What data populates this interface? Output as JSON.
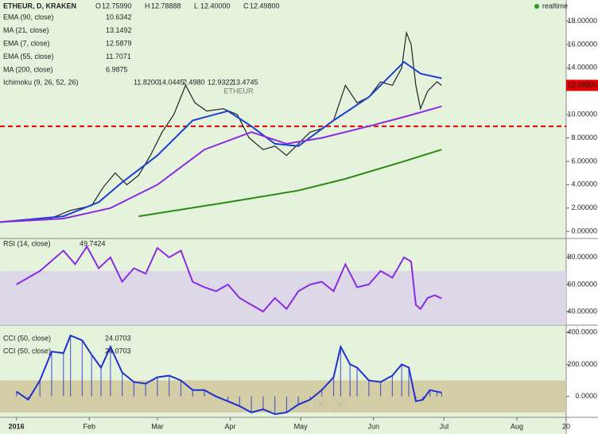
{
  "chart_data": [
    {
      "type": "line",
      "title": "ETHEUR, D, KRAKEN",
      "watermark": "ETHEUR",
      "realtime": "realtime",
      "ohlc": [
        {
          "key": "O",
          "value": "12.75990"
        },
        {
          "key": "H",
          "value": "12.78888"
        },
        {
          "key": "L",
          "value": "12.40000"
        },
        {
          "key": "C",
          "value": "12.49800"
        }
      ],
      "legend": [
        {
          "name": "EMA (90, close)",
          "value": "10.6342",
          "color": "#e07000"
        },
        {
          "name": "MA (21, close)",
          "value": "13.1492",
          "color": "#1f3fd0"
        },
        {
          "name": "EMA (7, close)",
          "value": "12.5879",
          "color": "#1f7fd0"
        },
        {
          "name": "EMA (55, close)",
          "value": "11.7071",
          "color": "#303080"
        },
        {
          "name": "MA (200, close)",
          "value": "6.9875",
          "color": "#2a8a10"
        }
      ],
      "ichimoku": {
        "name": "Ichimoku (9, 26, 52, 26)",
        "values": [
          {
            "value": "11.8200",
            "color": "#1f7fd0"
          },
          {
            "value": "14.0445",
            "color": "#c00000"
          },
          {
            "value": "2.4980",
            "color": "#2a8a10"
          },
          {
            "value": "12.9322",
            "color": "#303080"
          },
          {
            "value": "13.4745",
            "color": "#c00000"
          }
        ]
      },
      "xlim": [
        -7,
        234
      ],
      "ylim": [
        -0.6,
        19.8
      ],
      "yticks": [
        {
          "value": 0,
          "label": "0.00000"
        },
        {
          "value": 2,
          "label": "2.00000"
        },
        {
          "value": 4,
          "label": "4.00000"
        },
        {
          "value": 6,
          "label": "6.00000"
        },
        {
          "value": 8,
          "label": "8.00000"
        },
        {
          "value": 10,
          "label": "10.00000"
        },
        {
          "value": 14,
          "label": "14.00000"
        },
        {
          "value": 16,
          "label": "16.00000"
        },
        {
          "value": 18,
          "label": "18.00000"
        }
      ],
      "last_price": {
        "value": 12.498,
        "label": "12.49800"
      },
      "hline": 9,
      "series": [
        {
          "name": "ETHEUR",
          "color": "#222222",
          "x": [
            -7,
            13,
            23,
            32,
            37,
            42,
            47,
            52,
            57,
            62,
            67,
            72,
            76,
            81,
            88,
            94,
            99,
            105,
            110,
            115,
            120,
            125,
            130,
            135,
            140,
            145,
            150,
            155,
            160,
            164,
            166,
            168,
            170,
            172,
            175,
            179,
            181
          ],
          "values": [
            0.8,
            1.0,
            1.8,
            2.2,
            3.8,
            5.0,
            4.0,
            4.8,
            6.5,
            8.5,
            10.0,
            12.5,
            11.0,
            10.3,
            10.5,
            10.0,
            8.0,
            7.0,
            7.3,
            6.5,
            7.5,
            8.5,
            8.8,
            9.5,
            12.5,
            11.0,
            11.5,
            12.8,
            12.5,
            14.0,
            17.0,
            16.0,
            12.5,
            10.5,
            12.0,
            12.8,
            12.5
          ]
        },
        {
          "name": "MA (21, close)",
          "color": "#1f3fd0",
          "x": [
            -7,
            20,
            35,
            45,
            60,
            75,
            90,
            100,
            110,
            120,
            135,
            150,
            165,
            172,
            181
          ],
          "values": [
            0.8,
            1.3,
            2.5,
            4.2,
            6.5,
            9.5,
            10.3,
            9.0,
            7.5,
            7.3,
            9.5,
            11.5,
            14.5,
            13.5,
            13.1
          ]
        },
        {
          "name": "EMA (55, close)",
          "color": "#8a2be2",
          "x": [
            -7,
            20,
            40,
            60,
            80,
            100,
            115,
            130,
            150,
            165,
            181
          ],
          "values": [
            0.8,
            1.1,
            2.0,
            4.0,
            7.0,
            8.5,
            7.5,
            8.0,
            9.0,
            9.8,
            10.7
          ]
        },
        {
          "name": "MA (200, close)",
          "color": "#2a8a10",
          "x": [
            52,
            90,
            120,
            140,
            165,
            181
          ],
          "values": [
            1.3,
            2.5,
            3.5,
            4.5,
            6.0,
            7.0
          ]
        }
      ]
    },
    {
      "type": "line",
      "title": "RSI (14, close)",
      "last": "49.7424",
      "xlim": [
        -7,
        234
      ],
      "ylim": [
        30,
        94
      ],
      "band": [
        30,
        70
      ],
      "yticks": [
        {
          "value": 40,
          "label": "40.00000"
        },
        {
          "value": 60,
          "label": "60.00000"
        },
        {
          "value": 80,
          "label": "80.00000"
        }
      ],
      "series": [
        {
          "name": "RSI",
          "color": "#8a2be2",
          "x": [
            0,
            10,
            20,
            25,
            30,
            35,
            40,
            45,
            50,
            55,
            60,
            65,
            70,
            75,
            80,
            85,
            90,
            95,
            100,
            105,
            110,
            115,
            120,
            125,
            130,
            135,
            140,
            145,
            150,
            155,
            160,
            165,
            168,
            170,
            172,
            175,
            178,
            181
          ],
          "values": [
            60,
            70,
            85,
            75,
            88,
            72,
            80,
            62,
            72,
            68,
            87,
            80,
            85,
            62,
            58,
            55,
            60,
            50,
            45,
            40,
            50,
            42,
            55,
            60,
            62,
            55,
            75,
            58,
            60,
            70,
            65,
            80,
            77,
            45,
            42,
            50,
            52,
            49.7
          ]
        }
      ]
    },
    {
      "type": "bar",
      "title": "CCI (50, close)",
      "title2": "CCI (50, close)",
      "last": "24.0703",
      "last2": "24.0703",
      "xlim": [
        -7,
        234
      ],
      "ylim": [
        -130,
        445
      ],
      "band": [
        -100,
        100
      ],
      "yticks": [
        {
          "value": 0,
          "label": "0.0000"
        },
        {
          "value": 200,
          "label": "200.0000"
        },
        {
          "value": 400,
          "label": "400.0000"
        }
      ],
      "xticks": [
        {
          "value": 0,
          "label": "2016"
        },
        {
          "value": 31,
          "label": "Feb"
        },
        {
          "value": 60,
          "label": "Mar"
        },
        {
          "value": 91,
          "label": "Apr"
        },
        {
          "value": 121,
          "label": "May"
        },
        {
          "value": 152,
          "label": "Jun"
        },
        {
          "value": 182,
          "label": "Jul"
        },
        {
          "value": 213,
          "label": "Aug"
        },
        {
          "value": 234,
          "label": "20"
        }
      ],
      "series": [
        {
          "name": "CCI",
          "color": "#1f2fd0",
          "x": [
            0,
            5,
            10,
            15,
            20,
            23,
            28,
            32,
            36,
            40,
            45,
            50,
            55,
            60,
            65,
            70,
            75,
            80,
            85,
            90,
            95,
            100,
            105,
            110,
            115,
            120,
            125,
            130,
            135,
            138,
            142,
            145,
            150,
            155,
            160,
            164,
            167,
            170,
            173,
            176,
            179,
            181
          ],
          "values": [
            30,
            -20,
            100,
            280,
            270,
            380,
            350,
            260,
            180,
            310,
            150,
            90,
            80,
            120,
            130,
            100,
            40,
            40,
            0,
            -30,
            -60,
            -100,
            -80,
            -110,
            -100,
            -50,
            -20,
            40,
            120,
            310,
            200,
            180,
            100,
            90,
            130,
            200,
            180,
            -30,
            -20,
            40,
            30,
            24
          ]
        }
      ]
    }
  ]
}
